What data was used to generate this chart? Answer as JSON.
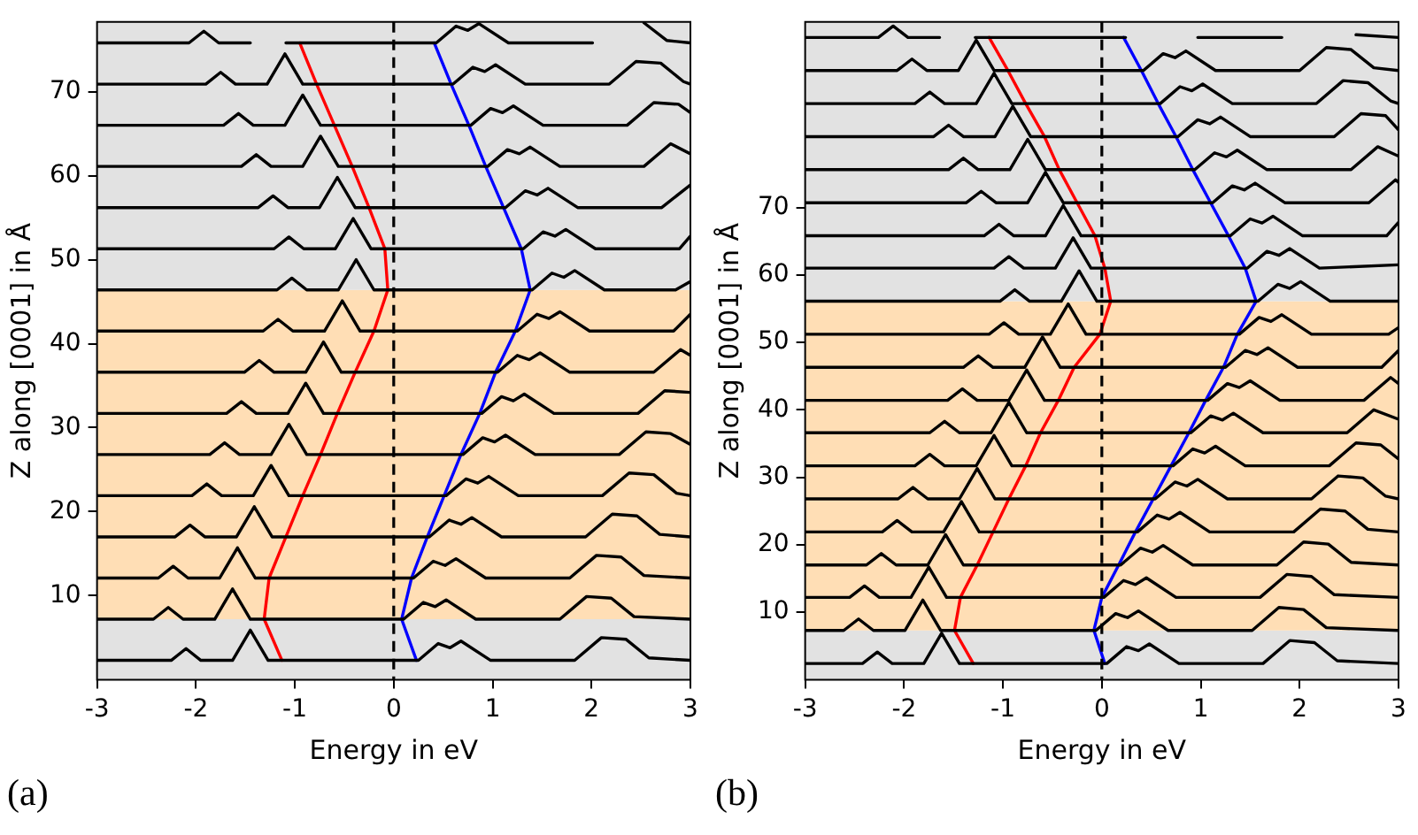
{
  "chart_data": [
    {
      "type": "line",
      "xlabel": "Energy in eV",
      "ylabel": "Z along [0001] in Å",
      "annotations": [
        "(a)"
      ],
      "xlim": [
        -3,
        3
      ],
      "xticks": [
        -3,
        -2,
        -1,
        0,
        1,
        2,
        3
      ],
      "ylim": [
        0,
        78.3
      ],
      "yticks": [
        10,
        20,
        30,
        40,
        50,
        60,
        70
      ],
      "marker": "none",
      "line_style": "solid",
      "bands": [
        {
          "axis": "y",
          "from": 0,
          "to": 7.2,
          "color": "#e2e2e2"
        },
        {
          "axis": "y",
          "from": 7.2,
          "to": 46.4,
          "color": "#ffdeb5"
        },
        {
          "axis": "y",
          "from": 46.4,
          "to": 78.3,
          "color": "#e2e2e2"
        }
      ],
      "ref_lines": [
        {
          "axis": "x",
          "value": 0,
          "color": "#000000",
          "line_style": "dashed"
        }
      ],
      "series": [
        {
          "color": "#000000",
          "x": [
            -3,
            -2.25,
            -2.1,
            -1.95,
            -1.63,
            -1.45,
            -1.27,
            0.25,
            0.45,
            0.57,
            0.68,
            0.98,
            1.83,
            2.1,
            2.35,
            2.58,
            3
          ],
          "values": [
            2.3,
            2.3,
            3.7,
            2.3,
            2.3,
            5.9,
            2.3,
            2.3,
            4.3,
            3.8,
            4.6,
            2.3,
            2.3,
            5,
            4.8,
            2.6,
            2.3
          ]
        },
        {
          "color": "#000000",
          "x": [
            -3,
            -2.43,
            -2.28,
            -2.13,
            -1.81,
            -1.63,
            -1.45,
            0.1,
            0.3,
            0.42,
            0.53,
            0.83,
            1.68,
            1.95,
            2.2,
            2.43,
            3
          ],
          "values": [
            7.2,
            7.2,
            8.6,
            7.2,
            7.2,
            10.8,
            7.2,
            7.2,
            9.2,
            8.7,
            9.5,
            7.2,
            7.2,
            9.9,
            9.7,
            7.5,
            7.2
          ]
        },
        {
          "color": "#000000",
          "x": [
            -3,
            -2.38,
            -2.23,
            -2.08,
            -1.76,
            -1.58,
            -1.4,
            0.2,
            0.4,
            0.52,
            0.63,
            0.93,
            1.78,
            2.05,
            2.3,
            2.53,
            3
          ],
          "values": [
            12.1,
            12.1,
            13.5,
            12.1,
            12.1,
            15.7,
            12.1,
            12.1,
            14.1,
            13.6,
            14.4,
            12.1,
            12.1,
            14.8,
            14.6,
            12.4,
            12.1
          ]
        },
        {
          "color": "#000000",
          "x": [
            -3,
            -2.21,
            -2.06,
            -1.91,
            -1.59,
            -1.41,
            -1.23,
            0.36,
            0.56,
            0.68,
            0.79,
            1.09,
            1.94,
            2.21,
            2.46,
            2.69,
            3
          ],
          "values": [
            17,
            17,
            18.4,
            17,
            17,
            20.6,
            17,
            17,
            19,
            18.5,
            19.3,
            17,
            17,
            19.7,
            19.5,
            17.3,
            17
          ]
        },
        {
          "color": "#000000",
          "x": [
            -3,
            -2.04,
            -1.89,
            -1.74,
            -1.42,
            -1.24,
            -1.06,
            0.53,
            0.73,
            0.85,
            0.96,
            1.26,
            2.11,
            2.38,
            2.63,
            2.86,
            3
          ],
          "values": [
            21.9,
            21.9,
            23.3,
            21.9,
            21.9,
            25.5,
            21.9,
            21.9,
            23.9,
            23.4,
            24.2,
            21.9,
            21.9,
            24.6,
            24.4,
            22.2,
            21.9
          ]
        },
        {
          "color": "#000000",
          "x": [
            -3,
            -1.86,
            -1.71,
            -1.56,
            -1.24,
            -1.06,
            -0.88,
            0.7,
            0.9,
            1.02,
            1.13,
            1.43,
            2.28,
            2.55,
            2.8,
            3
          ],
          "values": [
            26.8,
            26.8,
            28.2,
            26.8,
            26.8,
            30.4,
            26.8,
            26.8,
            28.8,
            28.3,
            29.1,
            26.8,
            26.8,
            29.5,
            29.3,
            28
          ]
        },
        {
          "color": "#000000",
          "x": [
            -3,
            -1.69,
            -1.54,
            -1.39,
            -1.07,
            -0.89,
            -0.71,
            0.89,
            1.09,
            1.21,
            1.32,
            1.62,
            2.47,
            2.74,
            3
          ],
          "values": [
            31.7,
            31.7,
            33.1,
            31.7,
            31.7,
            35.3,
            31.7,
            31.7,
            33.7,
            33.2,
            34,
            31.7,
            31.7,
            34.4,
            34.2
          ]
        },
        {
          "color": "#000000",
          "x": [
            -3,
            -1.51,
            -1.36,
            -1.21,
            -0.89,
            -0.71,
            -0.53,
            1.05,
            1.25,
            1.37,
            1.48,
            1.78,
            2.63,
            2.9,
            3
          ],
          "values": [
            36.6,
            36.6,
            38,
            36.6,
            36.6,
            40.2,
            36.6,
            36.6,
            38.6,
            38.1,
            38.9,
            36.6,
            36.6,
            39.3,
            38.6
          ]
        },
        {
          "color": "#000000",
          "x": [
            -3,
            -1.32,
            -1.17,
            -1.02,
            -0.7,
            -0.52,
            -0.34,
            1.25,
            1.45,
            1.57,
            1.68,
            1.98,
            2.83,
            3
          ],
          "values": [
            41.5,
            41.5,
            42.9,
            41.5,
            41.5,
            45.1,
            41.5,
            41.5,
            43.5,
            43,
            43.8,
            41.5,
            41.5,
            43.5
          ]
        },
        {
          "color": "#000000",
          "x": [
            -3,
            -1.18,
            -1.03,
            -0.88,
            -0.56,
            -0.38,
            -0.2,
            1.4,
            1.6,
            1.72,
            1.83,
            2.13,
            2.85,
            3
          ],
          "values": [
            46.4,
            46.4,
            47.8,
            46.4,
            46.4,
            50,
            46.4,
            46.4,
            48.4,
            47.9,
            48.7,
            46.4,
            46.4,
            47.4
          ]
        },
        {
          "color": "#000000",
          "x": [
            -3,
            -1.21,
            -1.06,
            -0.91,
            -0.59,
            -0.41,
            -0.23,
            1.31,
            1.51,
            1.63,
            1.74,
            2.04,
            2.89,
            3
          ],
          "values": [
            51.3,
            51.3,
            52.7,
            51.3,
            51.3,
            54.9,
            51.3,
            51.3,
            53.3,
            52.8,
            53.6,
            51.3,
            51.3,
            52.8
          ]
        },
        {
          "color": "#000000",
          "x": [
            -3,
            -1.37,
            -1.22,
            -1.07,
            -0.75,
            -0.57,
            -0.39,
            1.13,
            1.33,
            1.45,
            1.56,
            1.86,
            2.71,
            3
          ],
          "values": [
            56.2,
            56.2,
            57.6,
            56.2,
            56.2,
            59.8,
            56.2,
            56.2,
            58.2,
            57.7,
            58.5,
            56.2,
            56.2,
            58.9
          ]
        },
        {
          "color": "#000000",
          "x": [
            -3,
            -1.54,
            -1.39,
            -1.24,
            -0.92,
            -0.74,
            -0.56,
            0.95,
            1.15,
            1.27,
            1.38,
            1.68,
            2.53,
            2.8,
            3
          ],
          "values": [
            61.1,
            61.1,
            62.5,
            61.1,
            61.1,
            64.7,
            61.1,
            61.1,
            63.1,
            62.6,
            63.4,
            61.1,
            61.1,
            63.8,
            62.6
          ]
        },
        {
          "color": "#000000",
          "x": [
            -3,
            -1.72,
            -1.57,
            -1.42,
            -1.1,
            -0.92,
            -0.74,
            0.78,
            0.98,
            1.1,
            1.21,
            1.51,
            2.36,
            2.63,
            2.88,
            3
          ],
          "values": [
            66,
            66,
            67.4,
            66,
            66,
            69.6,
            66,
            66,
            68,
            67.5,
            68.3,
            66,
            66,
            68.7,
            68.5,
            67.5
          ]
        },
        {
          "color": "#000000",
          "x": [
            -3,
            -1.9,
            -1.75,
            -1.6,
            -1.28,
            -1.1,
            -0.92,
            0.6,
            0.8,
            0.92,
            1.03,
            1.33,
            2.18,
            2.45,
            2.7,
            2.93,
            3
          ],
          "values": [
            70.9,
            70.9,
            72.3,
            70.9,
            70.9,
            74.5,
            70.9,
            70.9,
            72.9,
            72.4,
            73.2,
            70.9,
            70.9,
            73.6,
            73.4,
            71.2,
            70.9
          ]
        },
        {
          "color": "#000000",
          "x": [
            -3,
            -2.07,
            -1.92,
            -1.77,
            -1.45,
            -1.27,
            -1.09,
            0.43,
            0.63,
            0.75,
            0.86,
            1.16,
            2.01,
            2.28,
            2.53,
            2.76,
            3
          ],
          "values": [
            75.8,
            75.8,
            77.2,
            75.8,
            75.8,
            null,
            75.8,
            75.8,
            77.8,
            77.3,
            78.1,
            75.8,
            75.8,
            null,
            78.2,
            76.1,
            75.8
          ]
        },
        {
          "color": "#ff0000",
          "x": [
            -1.13,
            -1.31,
            -1.26,
            -1.09,
            -0.92,
            -0.74,
            -0.57,
            -0.39,
            -0.2,
            -0.06,
            -0.09,
            -0.25,
            -0.42,
            -0.6,
            -0.78,
            -0.95
          ],
          "values": [
            2.3,
            7.2,
            12.1,
            17,
            21.9,
            26.8,
            31.7,
            36.6,
            41.5,
            46.4,
            51.3,
            56.2,
            61.1,
            66,
            70.9,
            75.8
          ]
        },
        {
          "color": "#0000ff",
          "x": [
            0.23,
            0.08,
            0.18,
            0.34,
            0.51,
            0.68,
            0.87,
            1.03,
            1.23,
            1.38,
            1.29,
            1.11,
            0.93,
            0.76,
            0.58,
            0.41
          ],
          "values": [
            2.3,
            7.2,
            12.1,
            17,
            21.9,
            26.8,
            31.7,
            36.6,
            41.5,
            46.4,
            51.3,
            56.2,
            61.1,
            66,
            70.9,
            75.8
          ]
        }
      ]
    },
    {
      "type": "line",
      "xlabel": "Energy in eV",
      "ylabel": "Z along [0001] in Å",
      "annotations": [
        "(b)"
      ],
      "xlim": [
        -3,
        3
      ],
      "xticks": [
        -3,
        -2,
        -1,
        0,
        1,
        2,
        3
      ],
      "ylim": [
        0,
        97.5
      ],
      "yticks": [
        10,
        20,
        30,
        40,
        50,
        60,
        70
      ],
      "marker": "none",
      "line_style": "solid",
      "bands": [
        {
          "axis": "y",
          "from": 0,
          "to": 7.3,
          "color": "#e2e2e2"
        },
        {
          "axis": "y",
          "from": 7.3,
          "to": 56.1,
          "color": "#ffdeb5"
        },
        {
          "axis": "y",
          "from": 56.1,
          "to": 97.5,
          "color": "#e2e2e2"
        }
      ],
      "ref_lines": [
        {
          "axis": "x",
          "value": 0,
          "color": "#000000",
          "line_style": "dashed"
        }
      ],
      "series": [
        {
          "color": "#000000",
          "x": [
            -3,
            -2.42,
            -2.27,
            -2.12,
            -1.8,
            -1.62,
            -1.44,
            0.05,
            0.25,
            0.37,
            0.48,
            0.78,
            1.63,
            1.9,
            2.15,
            2.38,
            3
          ],
          "values": [
            2.4,
            2.4,
            4.1,
            2.4,
            2.4,
            6.9,
            2.4,
            2.4,
            4.9,
            4.3,
            5.3,
            2.4,
            2.4,
            5.8,
            5.5,
            2.8,
            2.4
          ]
        },
        {
          "color": "#000000",
          "x": [
            -3,
            -2.61,
            -2.46,
            -2.31,
            -1.99,
            -1.81,
            -1.63,
            -0.06,
            0.14,
            0.26,
            0.37,
            0.67,
            1.52,
            1.79,
            2.04,
            2.27,
            3
          ],
          "values": [
            7.3,
            7.3,
            9,
            7.3,
            7.3,
            11.8,
            7.3,
            7.3,
            9.8,
            9.2,
            10.2,
            7.3,
            7.3,
            10.7,
            10.4,
            7.7,
            7.3
          ]
        },
        {
          "color": "#000000",
          "x": [
            -3,
            -2.55,
            -2.4,
            -2.25,
            -1.93,
            -1.75,
            -1.57,
            0.02,
            0.22,
            0.34,
            0.45,
            0.75,
            1.6,
            1.87,
            2.12,
            2.35,
            3
          ],
          "values": [
            12.2,
            12.2,
            13.9,
            12.2,
            12.2,
            16.7,
            12.2,
            12.2,
            14.7,
            14.1,
            15.1,
            12.2,
            12.2,
            15.6,
            15.3,
            12.6,
            12.2
          ]
        },
        {
          "color": "#000000",
          "x": [
            -3,
            -2.38,
            -2.23,
            -2.08,
            -1.76,
            -1.58,
            -1.4,
            0.19,
            0.39,
            0.51,
            0.62,
            0.92,
            1.77,
            2.04,
            2.29,
            2.52,
            3
          ],
          "values": [
            17,
            17,
            18.7,
            17,
            17,
            21.5,
            17,
            17,
            19.5,
            18.9,
            19.9,
            17,
            17,
            20.4,
            20.1,
            17.4,
            17
          ]
        },
        {
          "color": "#000000",
          "x": [
            -3,
            -2.22,
            -2.07,
            -1.92,
            -1.6,
            -1.42,
            -1.24,
            0.36,
            0.56,
            0.68,
            0.79,
            1.09,
            1.94,
            2.21,
            2.46,
            2.69,
            3
          ],
          "values": [
            21.9,
            21.9,
            23.6,
            21.9,
            21.9,
            26.4,
            21.9,
            21.9,
            24.4,
            23.8,
            24.8,
            21.9,
            21.9,
            25.3,
            25,
            22.3,
            21.9
          ]
        },
        {
          "color": "#000000",
          "x": [
            -3,
            -2.06,
            -1.91,
            -1.76,
            -1.44,
            -1.26,
            -1.08,
            0.54,
            0.74,
            0.86,
            0.97,
            1.27,
            2.12,
            2.39,
            2.64,
            2.87,
            3
          ],
          "values": [
            26.8,
            26.8,
            28.5,
            26.8,
            26.8,
            31.3,
            26.8,
            26.8,
            29.3,
            28.7,
            29.7,
            26.8,
            26.8,
            30.2,
            29.9,
            27.2,
            26.8
          ]
        },
        {
          "color": "#000000",
          "x": [
            -3,
            -1.89,
            -1.74,
            -1.59,
            -1.27,
            -1.09,
            -0.91,
            0.72,
            0.92,
            1.04,
            1.15,
            1.45,
            2.3,
            2.57,
            2.82,
            3
          ],
          "values": [
            31.7,
            31.7,
            33.4,
            31.7,
            31.7,
            36.2,
            31.7,
            31.7,
            34.2,
            33.6,
            34.6,
            31.7,
            31.7,
            35.1,
            34.8,
            32.7
          ]
        },
        {
          "color": "#000000",
          "x": [
            -3,
            -1.74,
            -1.59,
            -1.44,
            -1.12,
            -0.94,
            -0.76,
            0.9,
            1.1,
            1.22,
            1.33,
            1.63,
            2.48,
            2.75,
            3
          ],
          "values": [
            36.6,
            36.6,
            38.3,
            36.6,
            36.6,
            41.1,
            36.6,
            36.6,
            39.1,
            38.5,
            39.5,
            36.6,
            36.6,
            40,
            38.6
          ]
        },
        {
          "color": "#000000",
          "x": [
            -3,
            -1.56,
            -1.41,
            -1.26,
            -0.94,
            -0.76,
            -0.58,
            1.07,
            1.27,
            1.39,
            1.5,
            1.8,
            2.65,
            2.92,
            3
          ],
          "values": [
            41.4,
            41.4,
            43.1,
            41.4,
            41.4,
            45.9,
            41.4,
            41.4,
            43.9,
            43.3,
            44.3,
            41.4,
            41.4,
            44.8,
            43.9
          ]
        },
        {
          "color": "#000000",
          "x": [
            -3,
            -1.4,
            -1.25,
            -1.1,
            -0.78,
            -0.6,
            -0.42,
            1.25,
            1.45,
            1.57,
            1.68,
            1.98,
            2.83,
            3
          ],
          "values": [
            46.3,
            46.3,
            48,
            46.3,
            46.3,
            50.8,
            46.3,
            46.3,
            48.8,
            48.2,
            49.2,
            46.3,
            46.3,
            48.8
          ]
        },
        {
          "color": "#000000",
          "x": [
            -3,
            -1.14,
            -0.99,
            -0.84,
            -0.52,
            -0.34,
            -0.16,
            1.39,
            1.59,
            1.71,
            1.82,
            2.12,
            2.9,
            3
          ],
          "values": [
            51.2,
            51.2,
            52.9,
            51.2,
            51.2,
            55.7,
            51.2,
            51.2,
            53.7,
            53.1,
            54.1,
            51.2,
            51.2,
            52.2
          ]
        },
        {
          "color": "#000000",
          "x": [
            -3,
            -1.03,
            -0.88,
            -0.73,
            -0.41,
            -0.23,
            -0.05,
            1.58,
            1.78,
            1.9,
            2.01,
            2.31,
            3
          ],
          "values": [
            56.1,
            56.1,
            57.8,
            56.1,
            56.1,
            60.6,
            56.1,
            56.1,
            58.6,
            58,
            59,
            56.1,
            56.1
          ]
        },
        {
          "color": "#000000",
          "x": [
            -3,
            -1.09,
            -0.94,
            -0.79,
            -0.47,
            -0.29,
            -0.11,
            1.47,
            1.67,
            1.79,
            1.9,
            2.2,
            3
          ],
          "values": [
            61,
            61,
            62.7,
            61,
            61,
            65.5,
            61,
            61,
            63.5,
            62.9,
            63.9,
            61,
            61.5
          ]
        },
        {
          "color": "#000000",
          "x": [
            -3,
            -1.19,
            -1.04,
            -0.89,
            -0.57,
            -0.39,
            -0.21,
            1.3,
            1.5,
            1.62,
            1.73,
            2.03,
            2.88,
            3
          ],
          "values": [
            65.8,
            65.8,
            67.5,
            65.8,
            65.8,
            70.3,
            65.8,
            65.8,
            68.3,
            67.7,
            68.7,
            65.8,
            65.8,
            67.8
          ]
        },
        {
          "color": "#000000",
          "x": [
            -3,
            -1.37,
            -1.22,
            -1.07,
            -0.75,
            -0.57,
            -0.39,
            1.12,
            1.32,
            1.44,
            1.55,
            1.85,
            2.7,
            2.97,
            3
          ],
          "values": [
            70.7,
            70.7,
            72.4,
            70.7,
            70.7,
            75.2,
            70.7,
            70.7,
            73.2,
            72.6,
            73.6,
            70.7,
            70.7,
            74.1,
            73.7
          ]
        },
        {
          "color": "#000000",
          "x": [
            -3,
            -1.55,
            -1.4,
            -1.25,
            -0.93,
            -0.75,
            -0.57,
            0.94,
            1.14,
            1.26,
            1.37,
            1.67,
            2.52,
            2.79,
            3
          ],
          "values": [
            75.6,
            75.6,
            77.3,
            75.6,
            75.6,
            80.1,
            75.6,
            75.6,
            78.1,
            77.5,
            78.5,
            75.6,
            75.6,
            79,
            77.6
          ]
        },
        {
          "color": "#000000",
          "x": [
            -3,
            -1.7,
            -1.55,
            -1.4,
            -1.08,
            -0.9,
            -0.72,
            0.77,
            0.97,
            1.09,
            1.2,
            1.5,
            2.35,
            2.62,
            2.87,
            3
          ],
          "values": [
            80.5,
            80.5,
            82.2,
            80.5,
            80.5,
            85,
            80.5,
            80.5,
            83,
            82.4,
            83.4,
            80.5,
            80.5,
            83.9,
            83.6,
            81.5
          ]
        },
        {
          "color": "#000000",
          "x": [
            -3,
            -1.89,
            -1.74,
            -1.59,
            -1.27,
            -1.09,
            -0.91,
            0.59,
            0.79,
            0.91,
            1.02,
            1.32,
            2.17,
            2.44,
            2.69,
            2.92,
            3
          ],
          "values": [
            85.4,
            85.4,
            87.1,
            85.4,
            85.4,
            89.9,
            85.4,
            85.4,
            87.9,
            87.3,
            88.3,
            85.4,
            85.4,
            88.8,
            88.5,
            85.8,
            85.4
          ]
        },
        {
          "color": "#000000",
          "x": [
            -3,
            -2.07,
            -1.92,
            -1.77,
            -1.45,
            -1.27,
            -1.09,
            0.42,
            0.62,
            0.74,
            0.85,
            1.15,
            2,
            2.27,
            2.52,
            2.75,
            3
          ],
          "values": [
            90.3,
            90.3,
            92,
            90.3,
            90.3,
            94.8,
            90.3,
            90.3,
            92.8,
            92.2,
            93.2,
            90.3,
            90.3,
            93.7,
            93.4,
            90.7,
            90.3
          ]
        },
        {
          "color": "#000000",
          "x": [
            -3,
            -2.26,
            -2.11,
            -1.96,
            -1.64,
            -1.46,
            -1.28,
            0.24,
            0.44,
            0.56,
            0.67,
            0.97,
            1.82,
            2.09,
            2.34,
            2.57,
            3
          ],
          "values": [
            95.2,
            95.2,
            96.9,
            95.2,
            95.2,
            null,
            95.2,
            95.2,
            null,
            null,
            null,
            95.2,
            95.2,
            null,
            null,
            95.6,
            95.2
          ]
        },
        {
          "color": "#ff0000",
          "x": [
            -1.3,
            -1.49,
            -1.43,
            -1.26,
            -1.1,
            -0.94,
            -0.77,
            -0.62,
            -0.44,
            -0.28,
            -0.02,
            0.09,
            0.03,
            -0.07,
            -0.25,
            -0.43,
            -0.58,
            -0.77,
            -0.95,
            -1.14
          ],
          "values": [
            2.4,
            7.3,
            12.2,
            17,
            21.9,
            26.8,
            31.7,
            36.6,
            41.4,
            46.3,
            51.2,
            56.1,
            61,
            65.8,
            70.7,
            75.6,
            80.5,
            85.4,
            90.3,
            95.2
          ]
        },
        {
          "color": "#0000ff",
          "x": [
            0.03,
            -0.08,
            0,
            0.17,
            0.34,
            0.52,
            0.7,
            0.88,
            1.05,
            1.23,
            1.37,
            1.56,
            1.45,
            1.28,
            1.1,
            0.92,
            0.75,
            0.57,
            0.4,
            0.22
          ],
          "values": [
            2.4,
            7.3,
            12.2,
            17,
            21.9,
            26.8,
            31.7,
            36.6,
            41.4,
            46.3,
            51.2,
            56.1,
            61,
            65.8,
            70.7,
            75.6,
            80.5,
            85.4,
            90.3,
            95.2
          ]
        }
      ]
    }
  ]
}
